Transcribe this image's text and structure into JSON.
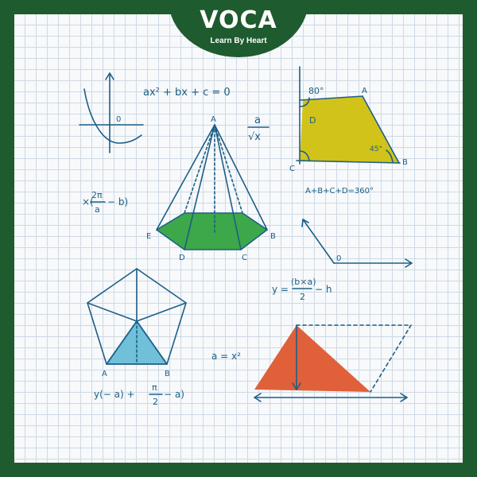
{
  "brand": {
    "logo_text": "VOCA",
    "tagline": "Learn By Heart",
    "frame_color": "#1e5b2e"
  },
  "formulas": {
    "quadratic": "ax² + bx + c = 0",
    "fraction_top": "a",
    "fraction_bottom": "√x",
    "angle_sum": "A+B+C+D=360°",
    "expr_left_prefix": "×(",
    "expr_left_num": "2π",
    "expr_left_den": "a",
    "expr_left_suffix": "− b)",
    "expr_mid_prefix": "y =",
    "expr_mid_num": "(b×a)",
    "expr_mid_den": "2",
    "expr_mid_suffix": "− h",
    "expr_bottom_left": "y(− a) +",
    "expr_bottom_num": "π",
    "expr_bottom_den": "2",
    "expr_bottom_suffix": "− a)",
    "a_eq": "a = x²"
  },
  "labels": {
    "graph_origin": "0",
    "axes_origin": "0",
    "pyramid_apex": "A",
    "pyramid_e": "E",
    "pyramid_b": "B",
    "pyramid_d": "D",
    "pyramid_c": "C",
    "quad_a": "A",
    "quad_b": "B",
    "quad_c": "C",
    "quad_d": "D",
    "angle_80": "80°",
    "angle_45": "45°",
    "pentagon_a": "A",
    "pentagon_b": "B"
  },
  "colors": {
    "ink": "#1d5f86",
    "pyramid_base": "#3ca84a",
    "quad_fill": "#d2c31b",
    "pentagon_fill": "#6fc0d8",
    "triangle_fill": "#e0603a"
  }
}
